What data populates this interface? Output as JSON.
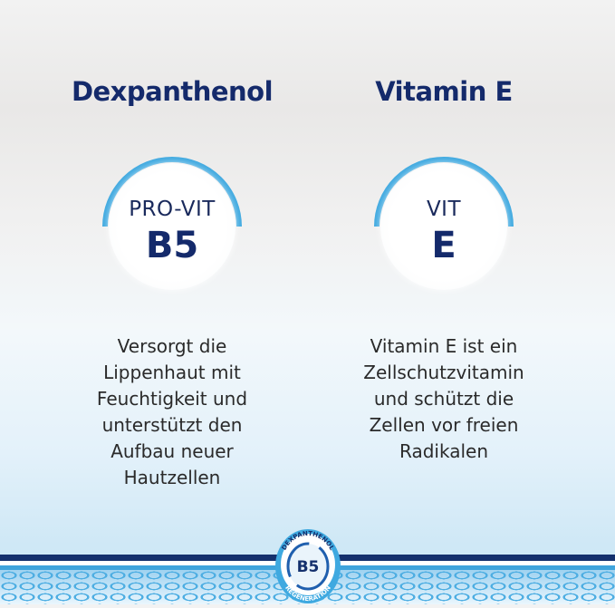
{
  "columns": [
    {
      "title": "Dexpanthenol",
      "badge_small": "PRO-VIT",
      "badge_big": "B5",
      "description": [
        "Versorgt die",
        "Lippenhaut mit",
        "Feuchtigkeit und",
        "unterstützt den",
        "Aufbau neuer",
        "Hautzellen"
      ]
    },
    {
      "title": "Vitamin E",
      "badge_small": "VIT",
      "badge_big": "E",
      "description": [
        "Vitamin E ist ein",
        "Zellschutzvitamin",
        "und schützt die",
        "Zellen vor freien",
        "Radikalen"
      ]
    }
  ],
  "logo": {
    "top_text": "DEXPANTHENOL",
    "center": "B5",
    "bottom_text": "REGENERATION"
  },
  "colors": {
    "navy": "#142a6b",
    "accent_blue": "#3fa9e0"
  }
}
